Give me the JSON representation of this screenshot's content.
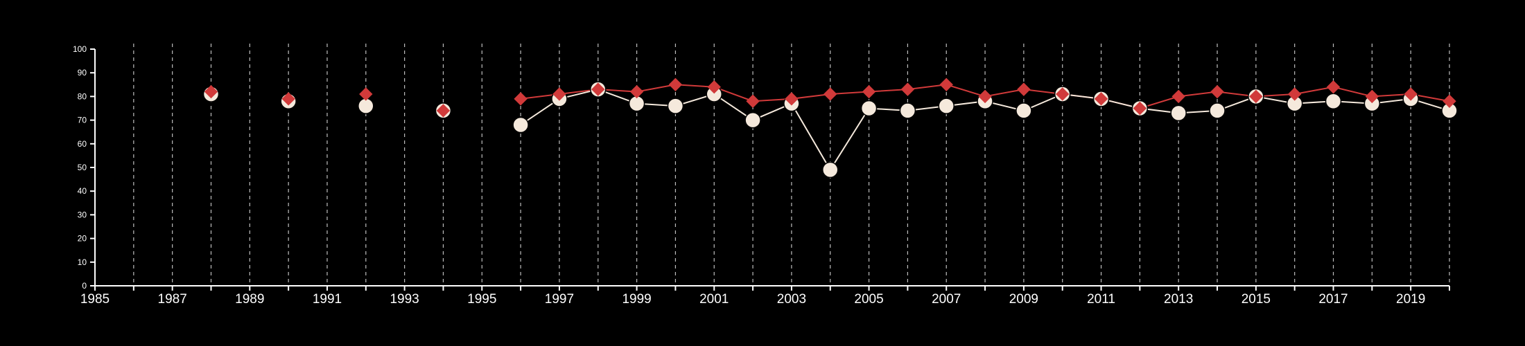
{
  "chart_data": {
    "type": "line",
    "title": "",
    "xlabel": "",
    "ylabel": "",
    "xlim": [
      1985,
      2020
    ],
    "ylim": [
      0,
      100
    ],
    "x_ticks": [
      1985,
      1987,
      1989,
      1991,
      1993,
      1995,
      1997,
      1999,
      2001,
      2003,
      2005,
      2007,
      2009,
      2011,
      2013,
      2015,
      2017,
      2019
    ],
    "y_ticks": [
      0,
      10,
      20,
      30,
      40,
      50,
      60,
      70,
      80,
      90,
      100
    ],
    "grid": "vertical dashed lines at each year",
    "legend": "none",
    "series": [
      {
        "color": "#d13a3a",
        "marker": "diamond",
        "points": [
          {
            "x": 1988,
            "y": 82
          },
          {
            "x": 1990,
            "y": 79
          },
          {
            "x": 1992,
            "y": 81
          },
          {
            "x": 1994,
            "y": 74
          },
          {
            "x": 1996,
            "y": 79
          },
          {
            "x": 1997,
            "y": 81
          },
          {
            "x": 1998,
            "y": 83
          },
          {
            "x": 1999,
            "y": 82
          },
          {
            "x": 2000,
            "y": 85
          },
          {
            "x": 2001,
            "y": 84
          },
          {
            "x": 2002,
            "y": 78
          },
          {
            "x": 2003,
            "y": 79
          },
          {
            "x": 2004,
            "y": 81
          },
          {
            "x": 2005,
            "y": 82
          },
          {
            "x": 2006,
            "y": 83
          },
          {
            "x": 2007,
            "y": 85
          },
          {
            "x": 2008,
            "y": 80
          },
          {
            "x": 2009,
            "y": 83
          },
          {
            "x": 2010,
            "y": 81
          },
          {
            "x": 2011,
            "y": 79
          },
          {
            "x": 2012,
            "y": 75
          },
          {
            "x": 2013,
            "y": 80
          },
          {
            "x": 2014,
            "y": 82
          },
          {
            "x": 2015,
            "y": 80
          },
          {
            "x": 2016,
            "y": 81
          },
          {
            "x": 2017,
            "y": 84
          },
          {
            "x": 2018,
            "y": 80
          },
          {
            "x": 2019,
            "y": 81
          },
          {
            "x": 2020,
            "y": 78
          }
        ]
      },
      {
        "color": "#f5e9dc",
        "marker": "circle",
        "points": [
          {
            "x": 1988,
            "y": 81
          },
          {
            "x": 1990,
            "y": 78
          },
          {
            "x": 1992,
            "y": 76
          },
          {
            "x": 1994,
            "y": 74
          },
          {
            "x": 1996,
            "y": 68
          },
          {
            "x": 1997,
            "y": 79
          },
          {
            "x": 1998,
            "y": 83
          },
          {
            "x": 1999,
            "y": 77
          },
          {
            "x": 2000,
            "y": 76
          },
          {
            "x": 2001,
            "y": 81
          },
          {
            "x": 2002,
            "y": 70
          },
          {
            "x": 2003,
            "y": 77
          },
          {
            "x": 2004,
            "y": 49
          },
          {
            "x": 2005,
            "y": 75
          },
          {
            "x": 2006,
            "y": 74
          },
          {
            "x": 2007,
            "y": 76
          },
          {
            "x": 2008,
            "y": 78
          },
          {
            "x": 2009,
            "y": 74
          },
          {
            "x": 2010,
            "y": 81
          },
          {
            "x": 2011,
            "y": 79
          },
          {
            "x": 2012,
            "y": 75
          },
          {
            "x": 2013,
            "y": 73
          },
          {
            "x": 2014,
            "y": 74
          },
          {
            "x": 2015,
            "y": 80
          },
          {
            "x": 2016,
            "y": 77
          },
          {
            "x": 2017,
            "y": 78
          },
          {
            "x": 2018,
            "y": 77
          },
          {
            "x": 2019,
            "y": 79
          },
          {
            "x": 2020,
            "y": 74
          }
        ]
      }
    ]
  },
  "colors": {
    "background": "#000000",
    "axis": "#ffffff",
    "grid": "#bfbfbf"
  }
}
